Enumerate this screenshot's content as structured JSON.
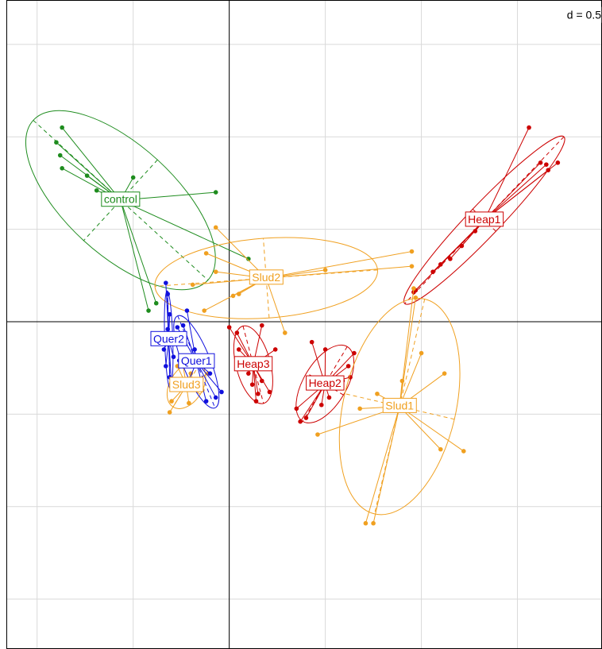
{
  "chart_data": {
    "type": "scatter",
    "annotation": "d = 0.5",
    "xlim": [
      -1.16,
      1.94
    ],
    "ylim": [
      -1.77,
      1.74
    ],
    "xticks": [
      -1,
      -0.5,
      0,
      0.5,
      1,
      1.5
    ],
    "yticks": [
      -1.5,
      -1,
      -0.5,
      0,
      0.5,
      1,
      1.5
    ],
    "grid": true,
    "series": [
      {
        "name": "control",
        "color": "#1e8c1e",
        "x": [
          -0.87,
          -0.9,
          -0.88,
          -0.87,
          -0.74,
          -0.69,
          -0.5,
          -0.07,
          0.1,
          -0.38,
          -0.42
        ],
        "y": [
          1.05,
          0.97,
          0.9,
          0.83,
          0.79,
          0.71,
          0.78,
          0.7,
          0.34,
          0.1,
          0.06
        ]
      },
      {
        "name": "Slud2",
        "color": "#f0a020",
        "x": [
          -0.07,
          -0.12,
          -0.19,
          -0.07,
          0.05,
          0.02,
          -0.13,
          0.29,
          0.5,
          0.95,
          0.95,
          0.13
        ],
        "y": [
          0.51,
          0.37,
          0.2,
          0.27,
          0.15,
          0.14,
          0.06,
          -0.06,
          0.28,
          0.38,
          0.3,
          0.23
        ]
      },
      {
        "name": "Heap1",
        "color": "#cc0000",
        "x": [
          1.56,
          1.62,
          1.65,
          1.71,
          1.66,
          1.28,
          1.21,
          1.15,
          1.1,
          1.06,
          0.97,
          0.96
        ],
        "y": [
          1.05,
          0.86,
          0.85,
          0.86,
          0.82,
          0.49,
          0.41,
          0.34,
          0.31,
          0.27,
          0.17,
          0.16
        ]
      },
      {
        "name": "Heap3",
        "color": "#cc0000",
        "x": [
          0.0,
          0.04,
          0.17,
          0.24,
          0.1,
          0.12,
          0.15,
          0.14,
          0.21,
          0.05,
          0.11,
          0.17
        ],
        "y": [
          -0.03,
          -0.06,
          -0.02,
          -0.15,
          -0.28,
          -0.34,
          -0.39,
          -0.43,
          -0.38,
          -0.15,
          -0.24,
          -0.32
        ]
      },
      {
        "name": "Heap2",
        "color": "#cc0000",
        "x": [
          0.43,
          0.5,
          0.62,
          0.65,
          0.63,
          0.52,
          0.48,
          0.4,
          0.37,
          0.35,
          0.44,
          0.59
        ],
        "y": [
          -0.11,
          -0.15,
          -0.24,
          -0.17,
          -0.3,
          -0.41,
          -0.45,
          -0.52,
          -0.54,
          -0.47,
          -0.36,
          -0.32
        ]
      },
      {
        "name": "Slud1",
        "color": "#f0a020",
        "x": [
          0.96,
          0.97,
          1.0,
          1.1,
          1.22,
          1.12,
          0.71,
          0.75,
          0.46,
          0.68,
          0.77,
          0.9
        ],
        "y": [
          0.18,
          0.13,
          -0.17,
          -0.69,
          -0.7,
          -0.28,
          -1.09,
          -1.09,
          -0.61,
          -0.47,
          -0.39,
          -0.32
        ]
      },
      {
        "name": "Slud3",
        "color": "#f0a020",
        "x": [
          -0.31,
          -0.3,
          -0.21,
          -0.14,
          -0.16,
          -0.27,
          -0.2,
          -0.29,
          -0.24,
          -0.11
        ],
        "y": [
          -0.49,
          -0.43,
          -0.44,
          -0.37,
          -0.32,
          -0.24,
          -0.28,
          -0.36,
          -0.24,
          -0.28
        ]
      },
      {
        "name": "Quer1",
        "color": "#1010dd",
        "x": [
          -0.22,
          -0.27,
          -0.24,
          -0.18,
          -0.1,
          -0.04,
          -0.12,
          -0.07,
          -0.21,
          -0.26
        ],
        "y": [
          0.06,
          -0.03,
          -0.02,
          -0.15,
          -0.28,
          -0.38,
          -0.43,
          -0.41,
          -0.32,
          -0.21
        ]
      },
      {
        "name": "Quer2",
        "color": "#1010dd",
        "x": [
          -0.33,
          -0.32,
          -0.31,
          -0.32,
          -0.33,
          -0.31,
          -0.3,
          -0.3,
          -0.34,
          -0.29
        ],
        "y": [
          0.21,
          0.15,
          0.04,
          -0.04,
          -0.24,
          -0.3,
          -0.34,
          -0.11,
          -0.15,
          -0.19
        ]
      }
    ]
  }
}
